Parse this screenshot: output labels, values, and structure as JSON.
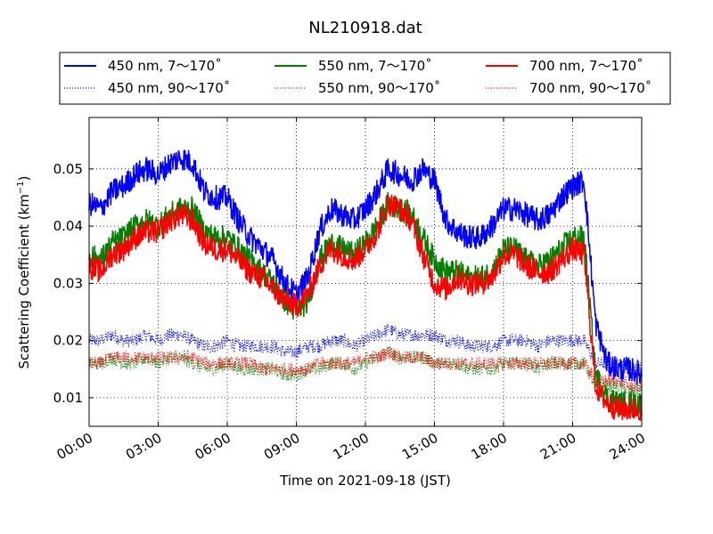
{
  "chart_data": {
    "type": "line",
    "title": "NL210918.dat",
    "xlabel": "Time on 2021-09-18 (JST)",
    "ylabel_main": "Scattering Coefficient (km",
    "ylabel_sup": "−1",
    "ylabel_end": ")",
    "x_unit": "hours",
    "xlim": [
      0,
      24
    ],
    "ylim": [
      0.005,
      0.059
    ],
    "grid": true,
    "legend_position": "top",
    "x_ticks": [
      0,
      3,
      6,
      9,
      12,
      15,
      18,
      21,
      24
    ],
    "x_tick_labels": [
      "00:00",
      "03:00",
      "06:00",
      "09:00",
      "12:00",
      "15:00",
      "18:00",
      "21:00",
      "24:00"
    ],
    "y_ticks": [
      0.01,
      0.02,
      0.03,
      0.04,
      0.05
    ],
    "y_tick_labels": [
      "0.01",
      "0.02",
      "0.03",
      "0.04",
      "0.05"
    ],
    "x": [
      0,
      0.5,
      1,
      1.5,
      2,
      2.5,
      3,
      3.5,
      4,
      4.5,
      5,
      5.5,
      6,
      6.5,
      7,
      7.5,
      8,
      8.5,
      9,
      9.5,
      10,
      10.5,
      11,
      11.5,
      12,
      12.5,
      13,
      13.5,
      14,
      14.5,
      15,
      15.5,
      16,
      16.5,
      17,
      17.5,
      18,
      18.5,
      19,
      19.5,
      20,
      20.5,
      21,
      21.5,
      22,
      22.5,
      23,
      23.5,
      24
    ],
    "series": [
      {
        "name": "450 nm, 7～170˚",
        "color": "#0000ff",
        "style": "solid",
        "values": [
          0.044,
          0.043,
          0.046,
          0.047,
          0.049,
          0.05,
          0.049,
          0.051,
          0.052,
          0.051,
          0.046,
          0.045,
          0.045,
          0.041,
          0.038,
          0.036,
          0.034,
          0.03,
          0.028,
          0.031,
          0.039,
          0.043,
          0.042,
          0.041,
          0.043,
          0.046,
          0.05,
          0.049,
          0.048,
          0.05,
          0.048,
          0.041,
          0.039,
          0.038,
          0.038,
          0.04,
          0.043,
          0.043,
          0.042,
          0.041,
          0.042,
          0.045,
          0.047,
          0.048,
          0.023,
          0.016,
          0.015,
          0.015,
          0.014
        ]
      },
      {
        "name": "550 nm, 7～170˚",
        "color": "#008000",
        "style": "solid",
        "values": [
          0.035,
          0.034,
          0.037,
          0.038,
          0.04,
          0.041,
          0.04,
          0.042,
          0.043,
          0.043,
          0.039,
          0.038,
          0.038,
          0.036,
          0.034,
          0.032,
          0.03,
          0.027,
          0.025,
          0.027,
          0.034,
          0.037,
          0.036,
          0.035,
          0.037,
          0.04,
          0.044,
          0.043,
          0.042,
          0.038,
          0.034,
          0.032,
          0.032,
          0.031,
          0.031,
          0.032,
          0.036,
          0.036,
          0.034,
          0.033,
          0.034,
          0.036,
          0.038,
          0.038,
          0.014,
          0.01,
          0.009,
          0.009,
          0.009
        ]
      },
      {
        "name": "700 nm, 7～170˚",
        "color": "#ff0000",
        "style": "solid",
        "values": [
          0.033,
          0.032,
          0.035,
          0.036,
          0.038,
          0.039,
          0.039,
          0.041,
          0.042,
          0.041,
          0.037,
          0.036,
          0.036,
          0.034,
          0.032,
          0.031,
          0.029,
          0.027,
          0.026,
          0.028,
          0.033,
          0.036,
          0.035,
          0.034,
          0.036,
          0.039,
          0.044,
          0.043,
          0.041,
          0.035,
          0.03,
          0.029,
          0.031,
          0.03,
          0.03,
          0.031,
          0.035,
          0.035,
          0.033,
          0.032,
          0.032,
          0.034,
          0.036,
          0.035,
          0.012,
          0.009,
          0.008,
          0.008,
          0.008
        ]
      },
      {
        "name": "450 nm, 90～170˚",
        "color": "#0000ff",
        "style": "dotted",
        "values": [
          0.02,
          0.02,
          0.021,
          0.02,
          0.02,
          0.021,
          0.02,
          0.021,
          0.021,
          0.02,
          0.019,
          0.019,
          0.02,
          0.019,
          0.019,
          0.019,
          0.019,
          0.018,
          0.018,
          0.019,
          0.019,
          0.02,
          0.02,
          0.019,
          0.02,
          0.021,
          0.022,
          0.021,
          0.021,
          0.021,
          0.021,
          0.02,
          0.02,
          0.019,
          0.019,
          0.019,
          0.02,
          0.02,
          0.02,
          0.019,
          0.02,
          0.02,
          0.02,
          0.02,
          0.016,
          0.016,
          0.016,
          0.015,
          0.015
        ]
      },
      {
        "name": "550 nm, 90～170˚",
        "color": "#008000",
        "style": "dotted",
        "values": [
          0.016,
          0.016,
          0.017,
          0.016,
          0.016,
          0.017,
          0.016,
          0.017,
          0.017,
          0.016,
          0.015,
          0.015,
          0.016,
          0.015,
          0.015,
          0.015,
          0.015,
          0.014,
          0.014,
          0.015,
          0.015,
          0.016,
          0.016,
          0.015,
          0.016,
          0.017,
          0.018,
          0.017,
          0.017,
          0.017,
          0.016,
          0.016,
          0.016,
          0.015,
          0.015,
          0.015,
          0.016,
          0.016,
          0.016,
          0.015,
          0.016,
          0.016,
          0.016,
          0.016,
          0.012,
          0.012,
          0.012,
          0.011,
          0.011
        ]
      },
      {
        "name": "700 nm, 90～170˚",
        "color": "#ff0000",
        "style": "dotted",
        "values": [
          0.016,
          0.016,
          0.017,
          0.017,
          0.017,
          0.017,
          0.017,
          0.017,
          0.017,
          0.017,
          0.016,
          0.016,
          0.016,
          0.016,
          0.016,
          0.015,
          0.015,
          0.015,
          0.015,
          0.015,
          0.016,
          0.016,
          0.016,
          0.016,
          0.017,
          0.017,
          0.018,
          0.017,
          0.017,
          0.017,
          0.016,
          0.016,
          0.016,
          0.016,
          0.016,
          0.016,
          0.016,
          0.016,
          0.016,
          0.016,
          0.016,
          0.016,
          0.016,
          0.016,
          0.013,
          0.013,
          0.013,
          0.012,
          0.012
        ]
      }
    ]
  }
}
